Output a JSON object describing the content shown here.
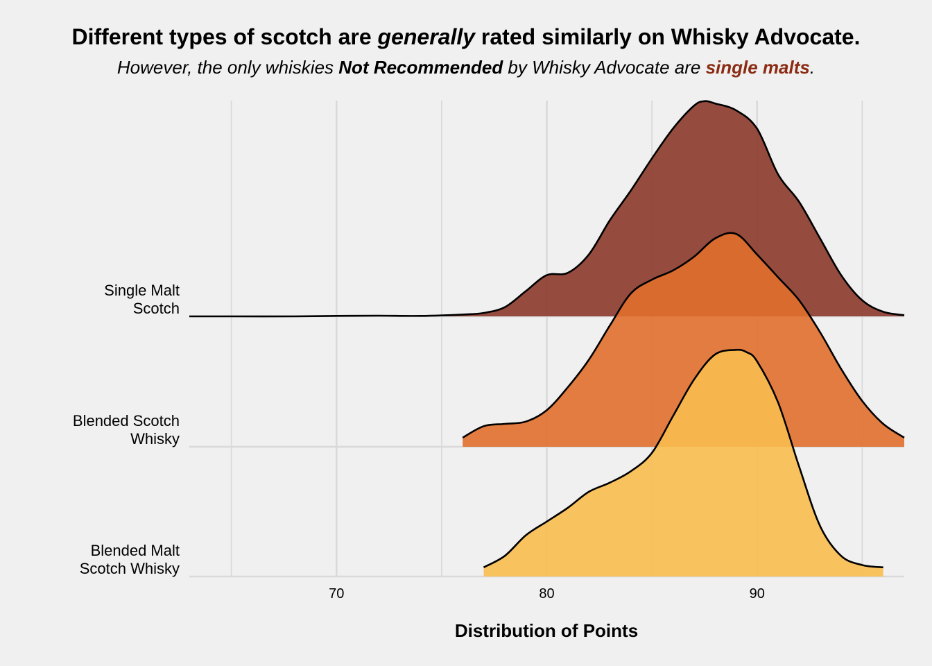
{
  "title": {
    "part1": "Different types of scotch are ",
    "emph": "generally",
    "part2": " rated similarly on Whisky Advocate."
  },
  "subtitle": {
    "part1": "However, the only whiskies ",
    "bold": "Not Recommended",
    "part2": " by Whisky Advocate are ",
    "highlight": "single malts",
    "part3": "."
  },
  "colors": {
    "background": "#f0f0f0",
    "grid": "#d9d9d9",
    "highlight": "#8b2b13"
  },
  "chart_data": {
    "type": "ridgeline",
    "xlabel": "Distribution of Points",
    "xlim": [
      63,
      97
    ],
    "xticks": [
      70,
      80,
      90
    ],
    "grid": true,
    "series": [
      {
        "name": "Single Malt\nScotch",
        "color": "#8b3a2a",
        "x": [
          63,
          65,
          68,
          70,
          72,
          74,
          76,
          77,
          78,
          79,
          80,
          81,
          82,
          83,
          84,
          85,
          86,
          87,
          87.5,
          88,
          89,
          90,
          91,
          92,
          93,
          94,
          95,
          96,
          97
        ],
        "density": [
          0.0,
          0.0,
          0.0,
          0.002,
          0.003,
          0.002,
          0.008,
          0.015,
          0.04,
          0.11,
          0.18,
          0.19,
          0.27,
          0.42,
          0.55,
          0.69,
          0.82,
          0.92,
          0.94,
          0.93,
          0.9,
          0.82,
          0.62,
          0.5,
          0.34,
          0.18,
          0.07,
          0.02,
          0.005
        ]
      },
      {
        "name": "Blended Scotch\nWhisky",
        "color": "#e06f2c",
        "x": [
          76,
          77,
          78,
          79,
          80,
          81,
          82,
          83,
          84,
          85,
          86,
          87,
          88,
          89,
          90,
          91,
          92,
          93,
          94,
          95,
          96,
          97
        ],
        "density": [
          0.04,
          0.09,
          0.1,
          0.11,
          0.16,
          0.26,
          0.38,
          0.53,
          0.67,
          0.73,
          0.77,
          0.83,
          0.91,
          0.93,
          0.84,
          0.74,
          0.64,
          0.5,
          0.34,
          0.2,
          0.1,
          0.04
        ]
      },
      {
        "name": "Blended Malt\nScotch Whisky",
        "color": "#f8bd4f",
        "x": [
          77,
          78,
          79,
          80,
          81,
          82,
          83,
          84,
          85,
          86,
          87,
          88,
          89,
          89.5,
          90,
          91,
          92,
          93,
          94,
          95,
          96
        ],
        "density": [
          0.04,
          0.09,
          0.18,
          0.24,
          0.3,
          0.37,
          0.41,
          0.46,
          0.54,
          0.7,
          0.86,
          0.97,
          0.99,
          0.98,
          0.94,
          0.76,
          0.48,
          0.22,
          0.09,
          0.05,
          0.04
        ]
      }
    ]
  }
}
